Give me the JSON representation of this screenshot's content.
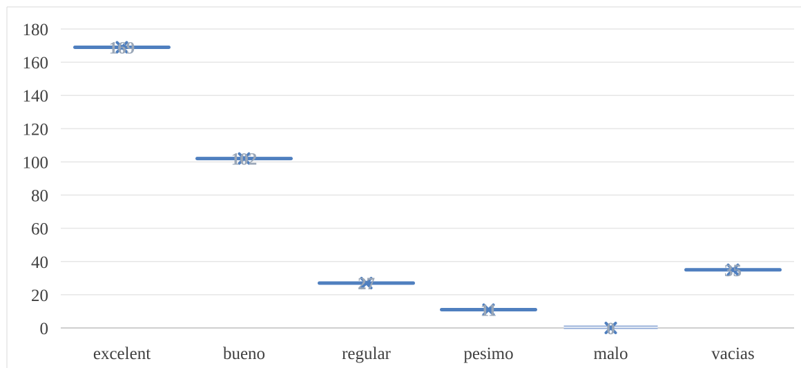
{
  "chart_data": {
    "type": "line",
    "title": "",
    "xlabel": "",
    "ylabel": "",
    "categories": [
      "excelent",
      "bueno",
      "regular",
      "pesimo",
      "malo",
      "vacias"
    ],
    "series": [
      {
        "values": [
          169,
          102,
          27,
          11,
          0,
          35
        ]
      }
    ],
    "ylim": [
      0,
      180
    ],
    "yticks": [
      0,
      20,
      40,
      60,
      80,
      100,
      120,
      140,
      160,
      180
    ],
    "grid": true,
    "legend": "none",
    "data_labels": true,
    "marker": "x",
    "colors": {
      "series": "#4f7fbf",
      "grid": "#e6e6e6",
      "axis": "#bfbfbf",
      "label": "#404040",
      "data_label": "#9aa7b8"
    }
  }
}
